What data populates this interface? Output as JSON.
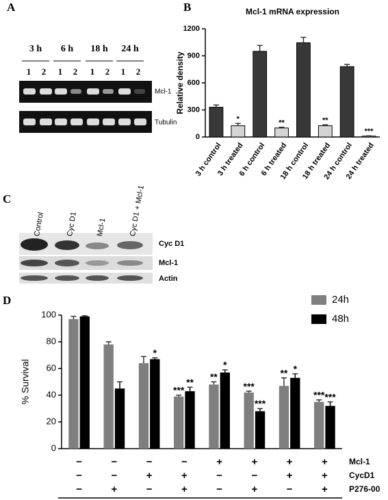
{
  "panel_labels": [
    "A",
    "B",
    "C",
    "D"
  ],
  "gel_a": {
    "timepoints": [
      "3 h",
      "6 h",
      "18 h",
      "24 h"
    ],
    "lanes": [
      "1",
      "2"
    ],
    "bands": [
      "Mcl-1",
      "Tubulin"
    ]
  },
  "gel_c": {
    "lanes": [
      "Control",
      "Cyc D1",
      "Mcl-1",
      "Cyc D1 + Mcl-1"
    ],
    "bands": [
      "Cyc D1",
      "Mcl-1",
      "Actin"
    ]
  },
  "chart_data": [
    {
      "type": "bar",
      "title": "Mcl-1 mRNA expression",
      "y_label": "Relative density",
      "categories": [
        "3 h control",
        "3 h treated",
        "6 h control",
        "6 h treated",
        "18 h control",
        "18 h treated",
        "24 h control",
        "24 h treated"
      ],
      "values": [
        330,
        125,
        950,
        100,
        1045,
        125,
        780,
        10
      ],
      "errors": [
        25,
        25,
        65,
        8,
        60,
        10,
        25,
        3
      ],
      "annotations": [
        null,
        "*",
        null,
        "**",
        null,
        "**",
        null,
        "***"
      ],
      "colors": [
        "#383838",
        "#d4d4d4",
        "#383838",
        "#d4d4d4",
        "#383838",
        "#d4d4d4",
        "#383838",
        "#d4d4d4"
      ],
      "ylim": [
        0,
        1200
      ],
      "yticks": [
        0,
        300,
        600,
        900,
        1200
      ]
    },
    {
      "type": "bar",
      "y_label": "% Survival",
      "series": [
        {
          "name": "24h",
          "color": "#7f7f7f",
          "values": [
            97,
            78,
            64,
            39,
            48,
            42,
            47,
            35
          ],
          "errors": [
            2,
            2,
            5,
            1,
            2,
            1,
            6,
            1.5
          ],
          "annotations": [
            null,
            null,
            null,
            "***",
            "**",
            "***",
            "**",
            "***"
          ]
        },
        {
          "name": "48h",
          "color": "#000000",
          "values": [
            99,
            45,
            67,
            43,
            57,
            28,
            53,
            32
          ],
          "errors": [
            0.5,
            5,
            1,
            3,
            2,
            2,
            3,
            3
          ],
          "annotations": [
            null,
            null,
            "*",
            "**",
            "*",
            "***",
            "*",
            "***"
          ]
        }
      ],
      "conditions": [
        {
          "name": "Mcl-1",
          "values": [
            "−",
            "−",
            "−",
            "−",
            "+",
            "+",
            "+",
            "+"
          ]
        },
        {
          "name": "CycD1",
          "values": [
            "−",
            "−",
            "+",
            "+",
            "−",
            "−",
            "+",
            "+"
          ]
        },
        {
          "name": "P276-00",
          "values": [
            "−",
            "+",
            "−",
            "+",
            "−",
            "+",
            "−",
            "+"
          ]
        }
      ],
      "legend": "upper right",
      "ylim": [
        0,
        100
      ],
      "yticks": [
        0,
        20,
        40,
        60,
        80,
        100
      ]
    }
  ]
}
